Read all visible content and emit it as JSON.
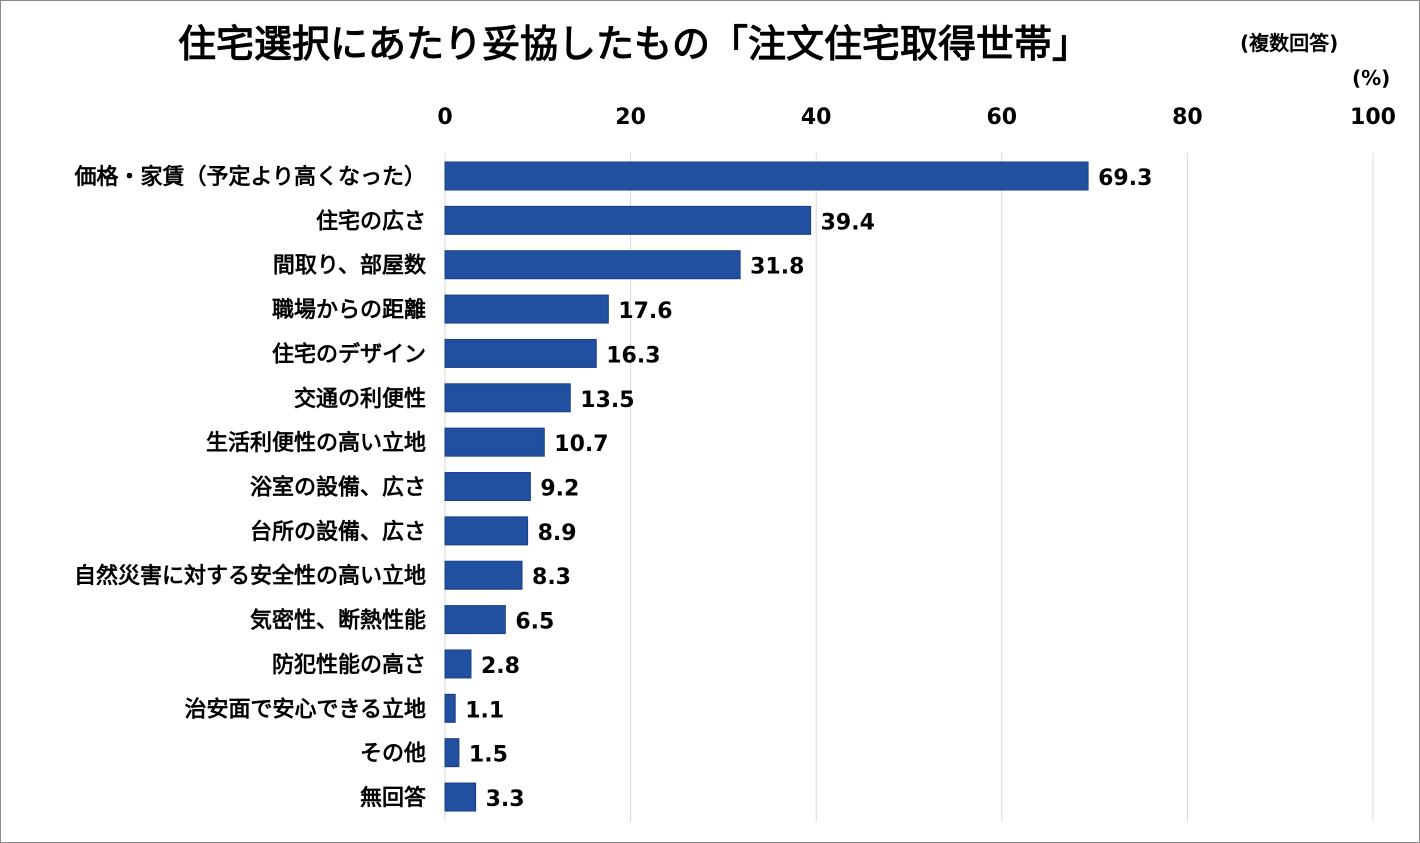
{
  "chart_data": {
    "type": "bar",
    "orientation": "horizontal",
    "title": "住宅選択にあたり妥協したもの「注文住宅取得世帯」",
    "subtitle": "(複数回答)",
    "unit_label": "(%)",
    "xlim": [
      0,
      100
    ],
    "ticks": [
      "0",
      "20",
      "40",
      "60",
      "80",
      "100"
    ],
    "tick_values": [
      0,
      20,
      40,
      60,
      80,
      100
    ],
    "grid": true,
    "bar_color": "#2150a0",
    "categories": [
      "価格・家賃（予定より高くなった）",
      "住宅の広さ",
      "間取り、部屋数",
      "職場からの距離",
      "住宅のデザイン",
      "交通の利便性",
      "生活利便性の高い立地",
      "浴室の設備、広さ",
      "台所の設備、広さ",
      "自然災害に対する安全性の高い立地",
      "気密性、断熱性能",
      "防犯性能の高さ",
      "治安面で安心できる立地",
      "その他",
      "無回答"
    ],
    "values": [
      69.3,
      39.4,
      31.8,
      17.6,
      16.3,
      13.5,
      10.7,
      9.2,
      8.9,
      8.3,
      6.5,
      2.8,
      1.1,
      1.5,
      3.3
    ],
    "value_labels": [
      "69.3",
      "39.4",
      "31.8",
      "17.6",
      "16.3",
      "13.5",
      "10.7",
      "9.2",
      "8.9",
      "8.3",
      "6.5",
      "2.8",
      "1.1",
      "1.5",
      "3.3"
    ]
  }
}
